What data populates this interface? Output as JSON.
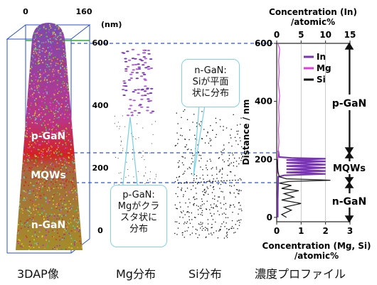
{
  "apt": {
    "axis_ticks": [
      "0",
      "160"
    ],
    "unit": "(nm)",
    "depth_ticks": [
      "600",
      "400",
      "200",
      "0"
    ],
    "region_labels": [
      "p-GaN",
      "MQWs",
      "n-GaN"
    ]
  },
  "callouts": {
    "mg": [
      "p-GaN:",
      "Mgがクラ",
      "スタ状に",
      "分布"
    ],
    "si": [
      "n-GaN:",
      "Siが平面",
      "状に分布"
    ]
  },
  "captions": [
    "3DAP像",
    "Mg分布",
    "Si分布",
    "濃度プロファイル"
  ],
  "colors": {
    "in": "#7a35b5",
    "mg": "#e13ae0",
    "si": "#111111",
    "callout_border": "#7fd3e6",
    "guide": "#2b56c8"
  },
  "chart_data": {
    "type": "line",
    "title_top": "Concentration (In)",
    "title_top_unit": "/atomic%",
    "xlabel_bottom": "Concentration (Mg, Si)",
    "xlabel_bottom_unit": "/atomic%",
    "ylabel": "Distance / nm",
    "ylim": [
      -15,
      600
    ],
    "xlim_top": [
      0,
      15
    ],
    "xlim_bottom": [
      0,
      3
    ],
    "top_ticks": [
      "0",
      "5",
      "10",
      "15"
    ],
    "bottom_ticks": [
      "0",
      "1",
      "2",
      "3"
    ],
    "y_ticks": [
      "0",
      "200",
      "400",
      "600"
    ],
    "legend": [
      "In",
      "Mg",
      "Si"
    ],
    "legend_position": "top-right",
    "regions": [
      "p-GaN",
      "MQWs",
      "n-GaN"
    ],
    "series": [
      {
        "name": "In",
        "axis": "top",
        "points": [
          [
            0.3,
            230
          ],
          [
            0.5,
            208
          ],
          [
            3,
            205
          ],
          [
            10,
            202
          ],
          [
            2,
            198
          ],
          [
            10,
            193
          ],
          [
            2,
            188
          ],
          [
            10,
            182
          ],
          [
            2,
            177
          ],
          [
            10,
            171
          ],
          [
            2,
            166
          ],
          [
            10,
            160
          ],
          [
            2,
            155
          ],
          [
            10,
            150
          ],
          [
            1.5,
            145
          ],
          [
            0.3,
            140
          ],
          [
            0.2,
            60
          ],
          [
            0.2,
            0
          ]
        ]
      },
      {
        "name": "Mg",
        "axis": "bottom",
        "points": [
          [
            0.05,
            600
          ],
          [
            0.12,
            580
          ],
          [
            0.08,
            540
          ],
          [
            0.1,
            500
          ],
          [
            0.07,
            460
          ],
          [
            0.12,
            420
          ],
          [
            0.08,
            380
          ],
          [
            0.1,
            340
          ],
          [
            0.07,
            300
          ],
          [
            0.09,
            260
          ],
          [
            0.06,
            225
          ],
          [
            0.05,
            210
          ],
          [
            0.03,
            150
          ]
        ]
      },
      {
        "name": "Si",
        "axis": "bottom",
        "points": [
          [
            0.02,
            200
          ],
          [
            0.05,
            160
          ],
          [
            0.1,
            140
          ],
          [
            0.4,
            133
          ],
          [
            1.6,
            130
          ],
          [
            2.2,
            128
          ],
          [
            0.5,
            124
          ],
          [
            0.1,
            118
          ],
          [
            0.6,
            110
          ],
          [
            0.2,
            100
          ],
          [
            0.9,
            92
          ],
          [
            0.3,
            82
          ],
          [
            0.7,
            70
          ],
          [
            0.2,
            60
          ],
          [
            1.0,
            48
          ],
          [
            0.3,
            35
          ],
          [
            0.6,
            25
          ],
          [
            0.2,
            10
          ],
          [
            0.4,
            0
          ]
        ]
      }
    ]
  }
}
